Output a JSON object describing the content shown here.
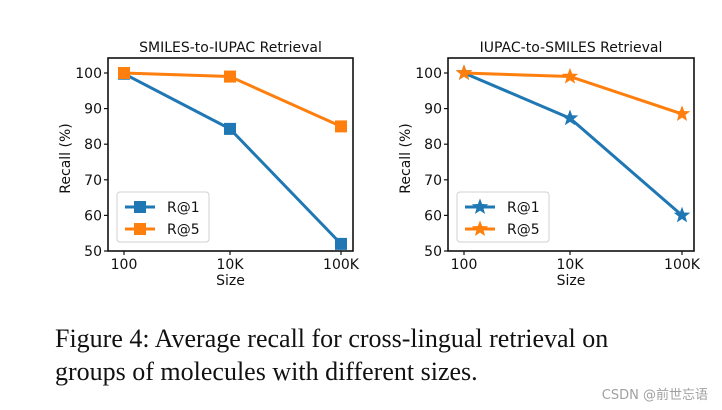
{
  "chart_data": [
    {
      "type": "line",
      "title": "SMILES-to-IUPAC Retrieval",
      "xlabel": "Size",
      "ylabel": "Recall (%)",
      "categories": [
        "100",
        "10K",
        "100K"
      ],
      "ylim": [
        50,
        103
      ],
      "yticks": [
        "50",
        "60",
        "70",
        "80",
        "90",
        "100"
      ],
      "marker": "square",
      "legend": "lower-left",
      "series": [
        {
          "name": "R@1",
          "color": "#1f77b4",
          "values": [
            99.8,
            84.3,
            52.0
          ]
        },
        {
          "name": "R@5",
          "color": "#ff7f0e",
          "values": [
            100.0,
            99.0,
            85.0
          ]
        }
      ]
    },
    {
      "type": "line",
      "title": "IUPAC-to-SMILES Retrieval",
      "xlabel": "Size",
      "ylabel": "Recall (%)",
      "categories": [
        "100",
        "10K",
        "100K"
      ],
      "ylim": [
        50,
        103
      ],
      "yticks": [
        "50",
        "60",
        "70",
        "80",
        "90",
        "100"
      ],
      "marker": "star",
      "legend": "lower-left",
      "series": [
        {
          "name": "R@1",
          "color": "#1f77b4",
          "values": [
            100.0,
            87.3,
            60.0
          ]
        },
        {
          "name": "R@5",
          "color": "#ff7f0e",
          "values": [
            100.0,
            99.0,
            88.5
          ]
        }
      ]
    }
  ],
  "caption": {
    "line1": "Figure 4:  Average recall for cross-lingual retrieval on",
    "line2": "groups of molecules with different sizes."
  },
  "watermark": "CSDN @前世忘语"
}
